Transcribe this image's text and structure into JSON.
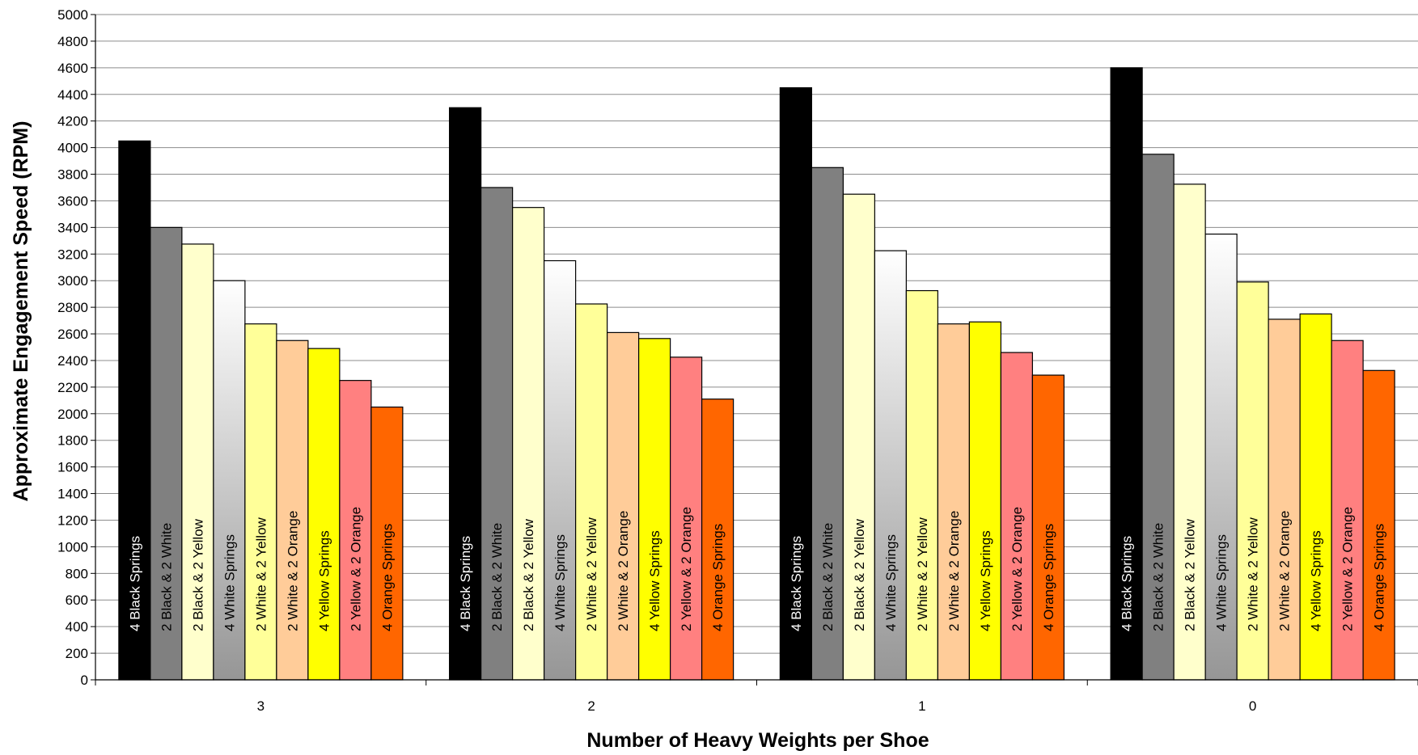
{
  "chart_data": {
    "type": "bar",
    "title": "",
    "xlabel": "Number of Heavy Weights per Shoe",
    "ylabel": "Approximate Engagement Speed  (RPM)",
    "ylim": [
      0,
      5000
    ],
    "ytick_step": 200,
    "y_ticks": [
      "0",
      "200",
      "400",
      "600",
      "800",
      "1000",
      "1200",
      "1400",
      "1600",
      "1800",
      "2000",
      "2200",
      "2400",
      "2600",
      "2800",
      "3000",
      "3200",
      "3400",
      "3600",
      "3800",
      "4000",
      "4200",
      "4400",
      "4600",
      "4800",
      "5000"
    ],
    "categories": [
      "3",
      "2",
      "1",
      "0"
    ],
    "grid": true,
    "legend": "none (series names printed vertically inside bars)",
    "series": [
      {
        "name": "4 Black Springs",
        "color": "#000000",
        "gradient": false,
        "label_color": "#ffffff",
        "values": [
          4050,
          4300,
          4450,
          4600
        ]
      },
      {
        "name": "2 Black & 2 White",
        "color": "#808080",
        "gradient": false,
        "label_color": "#000000",
        "values": [
          3400,
          3700,
          3850,
          3950
        ]
      },
      {
        "name": "2 Black & 2 Yellow",
        "color": "#ffffcc",
        "gradient": false,
        "label_color": "#000000",
        "values": [
          3275,
          3550,
          3650,
          3725
        ]
      },
      {
        "name": "4 White Springs",
        "color": "#ffffff",
        "gradient": true,
        "gradient_end": "#969696",
        "label_color": "#000000",
        "values": [
          3000,
          3150,
          3225,
          3350
        ]
      },
      {
        "name": "2 White & 2 Yellow",
        "color": "#ffff99",
        "gradient": false,
        "label_color": "#000000",
        "values": [
          2675,
          2825,
          2925,
          2990
        ]
      },
      {
        "name": "2 White & 2 Orange",
        "color": "#ffcc99",
        "gradient": false,
        "label_color": "#000000",
        "values": [
          2550,
          2610,
          2675,
          2710
        ]
      },
      {
        "name": "4 Yellow Springs",
        "color": "#ffff00",
        "gradient": false,
        "label_color": "#000000",
        "values": [
          2490,
          2565,
          2690,
          2750
        ]
      },
      {
        "name": "2 Yellow & 2 Orange",
        "color": "#ff8080",
        "gradient": false,
        "label_color": "#000000",
        "values": [
          2250,
          2425,
          2460,
          2550
        ]
      },
      {
        "name": "4 Orange Springs",
        "color": "#ff6600",
        "gradient": false,
        "label_color": "#000000",
        "values": [
          2050,
          2110,
          2290,
          2325
        ]
      }
    ]
  }
}
